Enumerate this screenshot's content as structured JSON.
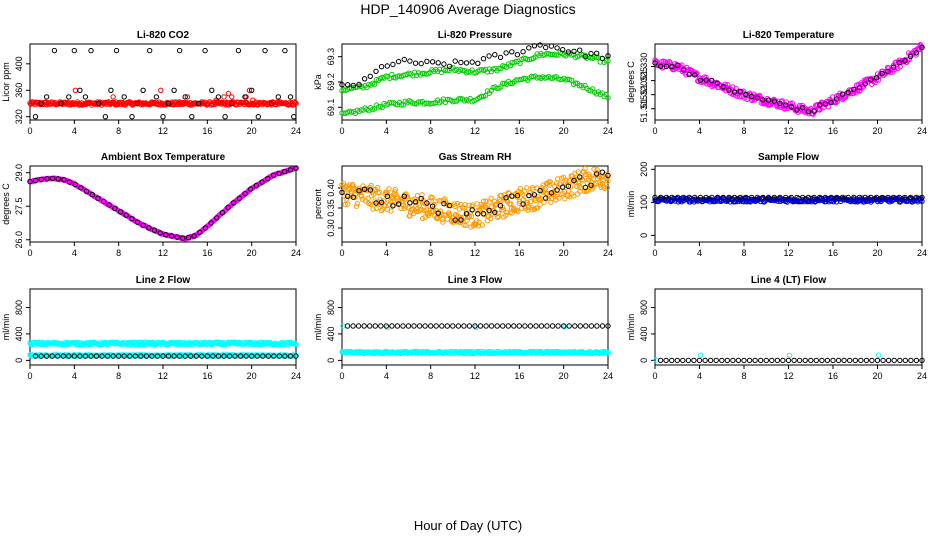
{
  "title": "HDP_140906  Average Diagnostics",
  "xlabel": "Hour of Day (UTC)",
  "chart_data": [
    {
      "type": "scatter",
      "title": "Li-820 CO2",
      "xlabel": "",
      "ylabel": "Licor ppm",
      "xlim": [
        0,
        24
      ],
      "ylim": [
        315,
        430
      ],
      "xticks": [
        0,
        4,
        8,
        12,
        16,
        20,
        24
      ],
      "yticks": [
        {
          "v": 320,
          "t": "320"
        },
        {
          "v": 360,
          "t": "360"
        },
        {
          "v": 400,
          "t": "400"
        }
      ],
      "series": [
        {
          "kind": "band",
          "color": "#ff0000",
          "from": 0,
          "to": 24,
          "yc": 340,
          "h": 2.5,
          "count": 320
        },
        {
          "kind": "points",
          "color": "#ff0000",
          "x": [
            4.1,
            7.5,
            11.8,
            14.2,
            16.8,
            17.5,
            17.9,
            18.2,
            19.5,
            19.8,
            20.1
          ],
          "y": [
            360,
            350,
            360,
            350,
            345,
            350,
            355,
            350,
            350,
            360,
            345
          ]
        },
        {
          "kind": "points",
          "color": "#000000",
          "x": [
            0.5,
            1.0,
            1.5,
            2.2,
            2.8,
            3.5,
            4.0,
            4.5,
            5.0,
            5.5,
            6.2,
            6.8,
            7.3,
            7.8,
            8.5,
            9.2,
            9.7,
            10.2,
            10.8,
            11.4,
            12.0,
            12.5,
            13.0,
            13.5,
            14.0,
            14.6,
            15.2,
            15.8,
            16.4,
            17.0,
            17.6,
            18.2,
            18.8,
            19.4,
            20.0,
            20.6,
            21.2,
            21.8,
            22.4,
            23.0,
            23.5,
            23.8
          ],
          "y": [
            320,
            340,
            350,
            420,
            340,
            350,
            420,
            360,
            350,
            420,
            340,
            320,
            360,
            420,
            350,
            320,
            340,
            360,
            420,
            350,
            320,
            340,
            360,
            420,
            350,
            320,
            340,
            420,
            360,
            350,
            320,
            340,
            420,
            350,
            360,
            320,
            420,
            340,
            350,
            420,
            350,
            320
          ]
        }
      ]
    },
    {
      "type": "scatter",
      "title": "Li-820 Pressure",
      "xlabel": "",
      "ylabel": "kPa",
      "xlim": [
        0,
        24
      ],
      "ylim": [
        69.05,
        69.35
      ],
      "xticks": [
        0,
        4,
        8,
        12,
        16,
        20,
        24
      ],
      "yticks": [
        {
          "v": 69.1,
          "t": "69.1"
        },
        {
          "v": 69.2,
          "t": "69.2"
        },
        {
          "v": 69.3,
          "t": "69.3"
        }
      ],
      "series": [
        {
          "kind": "curve",
          "color": "#00cc00",
          "xs": [
            0,
            2,
            4,
            6,
            8,
            10,
            12,
            14,
            16,
            18,
            20,
            22,
            24
          ],
          "ys": [
            69.07,
            69.09,
            69.11,
            69.12,
            69.12,
            69.13,
            69.13,
            69.18,
            69.21,
            69.22,
            69.21,
            69.18,
            69.14
          ],
          "jitter": 0.008,
          "count": 140
        },
        {
          "kind": "curve",
          "color": "#00cc00",
          "xs": [
            0,
            2,
            4,
            6,
            8,
            10,
            12,
            14,
            16,
            18,
            20,
            22,
            24
          ],
          "ys": [
            69.17,
            69.18,
            69.22,
            69.23,
            69.24,
            69.25,
            69.24,
            69.25,
            69.28,
            69.31,
            69.31,
            69.3,
            69.28
          ],
          "jitter": 0.008,
          "count": 140
        },
        {
          "kind": "curve",
          "color": "#000000",
          "xs": [
            0,
            2,
            4,
            6,
            8,
            10,
            12,
            14,
            16,
            18,
            20,
            22,
            24
          ],
          "ys": [
            69.18,
            69.2,
            69.27,
            69.28,
            69.27,
            69.27,
            69.28,
            69.3,
            69.32,
            69.35,
            69.33,
            69.31,
            69.3
          ],
          "jitter": 0.012,
          "count": 48
        }
      ]
    },
    {
      "type": "scatter",
      "title": "Li-820 Temperature",
      "xlabel": "",
      "ylabel": "degrees C",
      "xlim": [
        0,
        24
      ],
      "ylim": [
        51.311,
        51.338
      ],
      "xticks": [
        0,
        4,
        8,
        12,
        16,
        20,
        24
      ],
      "yticks": [
        {
          "v": 51.315,
          "t": "51.315"
        },
        {
          "v": 51.32,
          "t": "51.320"
        },
        {
          "v": 51.325,
          "t": "51.325"
        },
        {
          "v": 51.33,
          "t": "51.330"
        }
      ],
      "series": [
        {
          "kind": "curve",
          "color": "#ff00ff",
          "xs": [
            0,
            2,
            4,
            6,
            8,
            10,
            12,
            14,
            16,
            18,
            20,
            22,
            24
          ],
          "ys": [
            51.331,
            51.33,
            51.326,
            51.323,
            51.32,
            51.318,
            51.316,
            51.314,
            51.318,
            51.322,
            51.326,
            51.331,
            51.337
          ],
          "jitter": 0.0015,
          "count": 320
        },
        {
          "kind": "curve",
          "color": "#000000",
          "xs": [
            0,
            2,
            4,
            6,
            8,
            10,
            12,
            14,
            16,
            18,
            20,
            22,
            24
          ],
          "ys": [
            51.331,
            51.33,
            51.326,
            51.323,
            51.32,
            51.318,
            51.316,
            51.314,
            51.318,
            51.322,
            51.326,
            51.331,
            51.337
          ],
          "jitter": 0.0008,
          "count": 48
        }
      ]
    },
    {
      "type": "scatter",
      "title": "Ambient Box Temperature",
      "xlabel": "",
      "ylabel": "degrees C",
      "xlim": [
        0,
        24
      ],
      "ylim": [
        25.9,
        29.3
      ],
      "xticks": [
        0,
        4,
        8,
        12,
        16,
        20,
        24
      ],
      "yticks": [
        {
          "v": 26.0,
          "t": "26.0"
        },
        {
          "v": 27.5,
          "t": "27.5"
        },
        {
          "v": 29.0,
          "t": "29.0"
        }
      ],
      "series": [
        {
          "kind": "curve",
          "color": "#ff00ff",
          "xs": [
            0,
            1,
            2,
            3,
            4,
            6,
            8,
            10,
            12,
            13,
            14,
            15,
            16,
            18,
            20,
            22,
            24
          ],
          "ys": [
            28.6,
            28.7,
            28.75,
            28.7,
            28.5,
            27.9,
            27.3,
            26.7,
            26.25,
            26.15,
            26.05,
            26.2,
            26.6,
            27.5,
            28.3,
            28.9,
            29.2
          ],
          "jitter": 0.02,
          "count": 300
        },
        {
          "kind": "curve",
          "color": "#000000",
          "xs": [
            0,
            1,
            2,
            3,
            4,
            6,
            8,
            10,
            12,
            13,
            14,
            15,
            16,
            18,
            20,
            22,
            24
          ],
          "ys": [
            28.6,
            28.7,
            28.75,
            28.7,
            28.5,
            27.9,
            27.3,
            26.7,
            26.25,
            26.15,
            26.05,
            26.2,
            26.6,
            27.5,
            28.3,
            28.9,
            29.2
          ],
          "jitter": 0.0,
          "count": 48
        }
      ]
    },
    {
      "type": "scatter",
      "title": "Gas Stream RH",
      "xlabel": "",
      "ylabel": "percent",
      "xlim": [
        0,
        24
      ],
      "ylim": [
        0.265,
        0.455
      ],
      "xticks": [
        0,
        4,
        8,
        12,
        16,
        20,
        24
      ],
      "yticks": [
        {
          "v": 0.3,
          "t": "0.30"
        },
        {
          "v": 0.35,
          "t": "0.35"
        },
        {
          "v": 0.4,
          "t": "0.40"
        }
      ],
      "series": [
        {
          "kind": "curve",
          "color": "#ff9900",
          "xs": [
            0,
            2,
            4,
            6,
            8,
            10,
            12,
            14,
            16,
            18,
            20,
            22,
            24
          ],
          "ys": [
            0.39,
            0.38,
            0.37,
            0.36,
            0.35,
            0.34,
            0.33,
            0.35,
            0.37,
            0.38,
            0.4,
            0.42,
            0.43
          ],
          "jitter": 0.03,
          "count": 420
        },
        {
          "kind": "curve",
          "color": "#000000",
          "xs": [
            0,
            2,
            4,
            6,
            8,
            10,
            12,
            14,
            16,
            18,
            20,
            22,
            24
          ],
          "ys": [
            0.39,
            0.38,
            0.37,
            0.36,
            0.35,
            0.34,
            0.33,
            0.35,
            0.37,
            0.38,
            0.4,
            0.42,
            0.43
          ],
          "jitter": 0.02,
          "count": 48
        }
      ]
    },
    {
      "type": "scatter",
      "title": "Sample Flow",
      "xlabel": "",
      "ylabel": "ml/min",
      "xlim": [
        0,
        24
      ],
      "ylim": [
        -20,
        210
      ],
      "xticks": [
        0,
        4,
        8,
        12,
        16,
        20,
        24
      ],
      "yticks": [
        {
          "v": 0,
          "t": "0"
        },
        {
          "v": 100,
          "t": "100"
        },
        {
          "v": 200,
          "t": "200"
        }
      ],
      "series": [
        {
          "kind": "band",
          "color": "#0000cc",
          "from": 0,
          "to": 24,
          "yc": 107,
          "h": 6,
          "count": 320
        },
        {
          "kind": "band",
          "color": "#000000",
          "from": 0,
          "to": 24,
          "yc": 115,
          "h": 0,
          "count": 48
        }
      ]
    },
    {
      "type": "scatter",
      "title": "Line 2 Flow",
      "xlabel": "",
      "ylabel": "ml/min",
      "xlim": [
        0,
        24
      ],
      "ylim": [
        -70,
        1080
      ],
      "xticks": [
        0,
        4,
        8,
        12,
        16,
        20,
        24
      ],
      "yticks": [
        {
          "v": 0,
          "t": "0"
        },
        {
          "v": 400,
          "t": "400"
        },
        {
          "v": 800,
          "t": "800"
        }
      ],
      "series": [
        {
          "kind": "band",
          "color": "#00ffff",
          "from": 0,
          "to": 24,
          "yc": 255,
          "h": 20,
          "count": 320
        },
        {
          "kind": "band",
          "color": "#00ffff",
          "from": 0,
          "to": 24,
          "yc": 75,
          "h": 10,
          "count": 320
        },
        {
          "kind": "band",
          "color": "#000000",
          "from": 0.5,
          "to": 24,
          "yc": 65,
          "h": 0,
          "count": 48
        }
      ]
    },
    {
      "type": "scatter",
      "title": "Line 3 Flow",
      "xlabel": "",
      "ylabel": "ml/min",
      "xlim": [
        0,
        24
      ],
      "ylim": [
        -70,
        1080
      ],
      "xticks": [
        0,
        4,
        8,
        12,
        16,
        20,
        24
      ],
      "yticks": [
        {
          "v": 0,
          "t": "0"
        },
        {
          "v": 400,
          "t": "400"
        },
        {
          "v": 800,
          "t": "800"
        }
      ],
      "series": [
        {
          "kind": "band",
          "color": "#00ffff",
          "from": 0,
          "to": 24,
          "yc": 120,
          "h": 15,
          "count": 320
        },
        {
          "kind": "points",
          "color": "#00ffff",
          "x": [
            0.1,
            4.1,
            12.1,
            20.1
          ],
          "y": [
            520,
            500,
            500,
            510
          ]
        },
        {
          "kind": "band",
          "color": "#000000",
          "from": 0.5,
          "to": 24,
          "yc": 520,
          "h": 0,
          "count": 48
        }
      ]
    },
    {
      "type": "scatter",
      "title": "Line 4 (LT) Flow",
      "xlabel": "",
      "ylabel": "ml/min",
      "xlim": [
        0,
        24
      ],
      "ylim": [
        -70,
        1080
      ],
      "xticks": [
        0,
        4,
        8,
        12,
        16,
        20,
        24
      ],
      "yticks": [
        {
          "v": 0,
          "t": "0"
        },
        {
          "v": 400,
          "t": "400"
        },
        {
          "v": 800,
          "t": "800"
        }
      ],
      "series": [
        {
          "kind": "points",
          "color": "#00ffff",
          "x": [
            0.1,
            4.1,
            12.1,
            20.1
          ],
          "y": [
            5,
            80,
            75,
            80
          ]
        },
        {
          "kind": "band",
          "color": "#000000",
          "from": 0.5,
          "to": 24,
          "yc": 0,
          "h": 0,
          "count": 48
        }
      ]
    }
  ]
}
